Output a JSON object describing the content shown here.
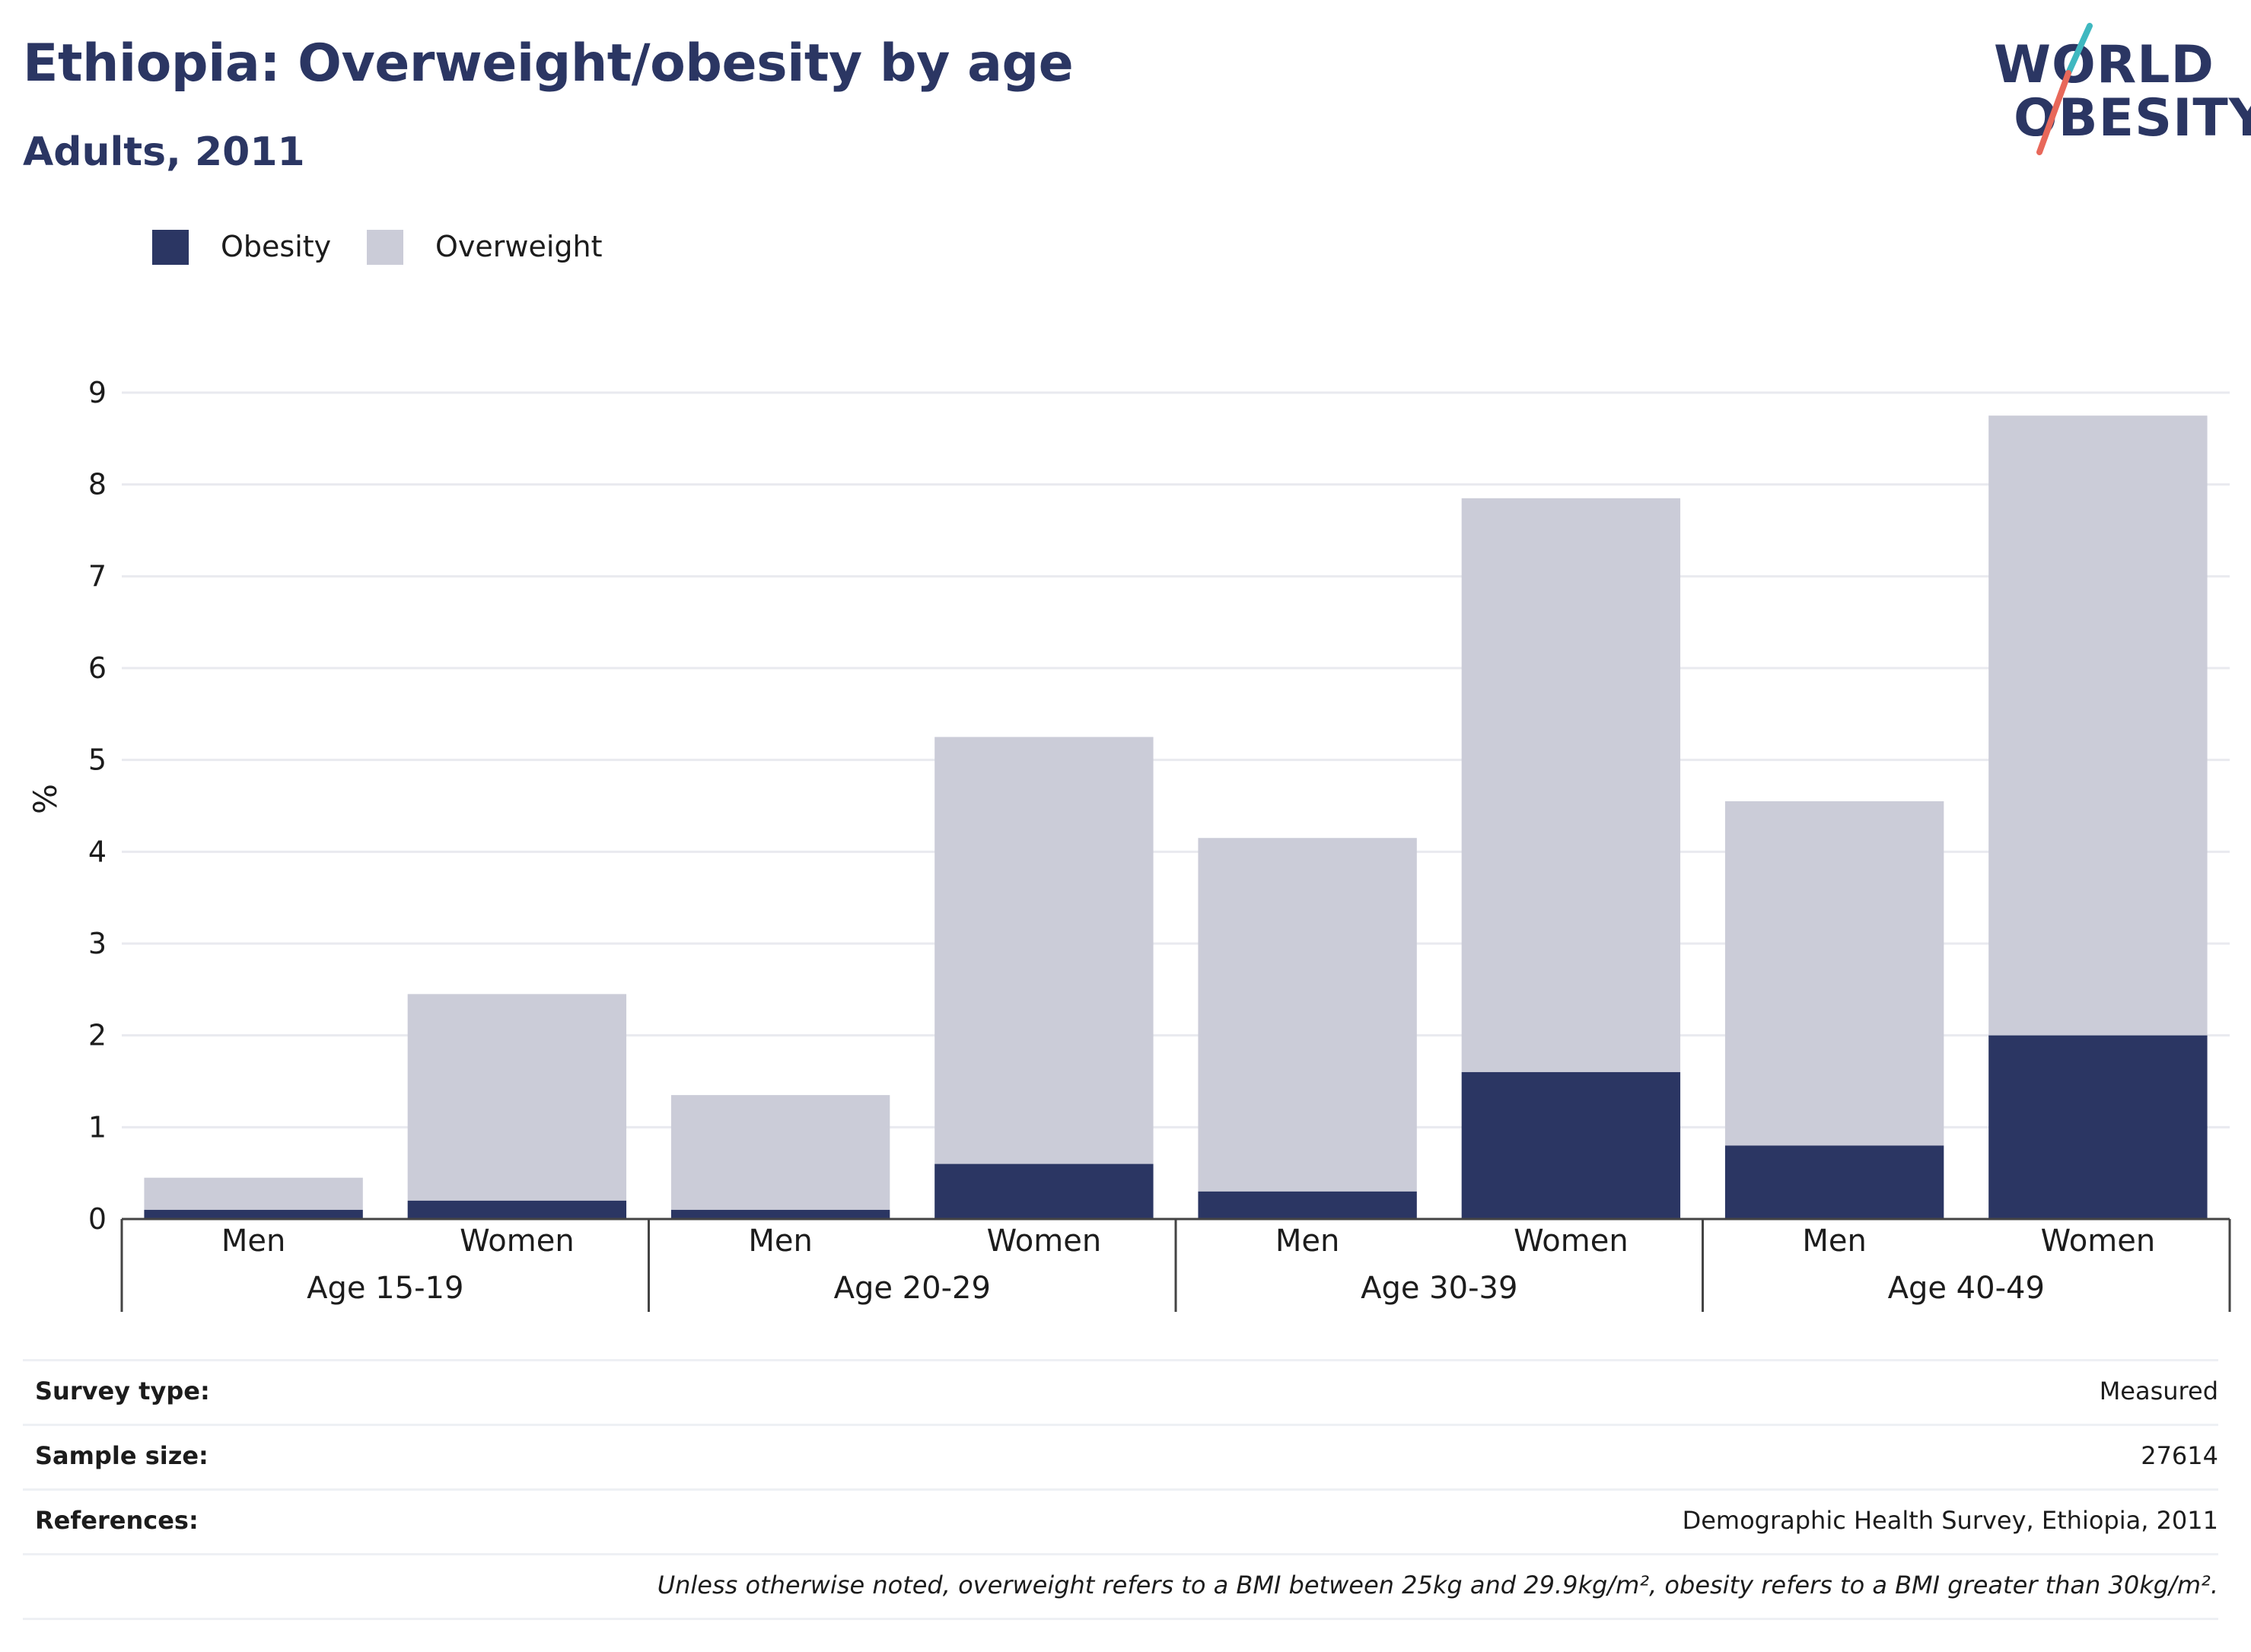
{
  "header": {
    "title": "Ethiopia: Overweight/obesity by age",
    "subtitle": "Adults, 2011"
  },
  "logo": {
    "line1": "WORLD",
    "line2": "OBESITY"
  },
  "legend": {
    "obesity_label": "Obesity",
    "overweight_label": "Overweight"
  },
  "colors": {
    "obesity": "#2b3663",
    "overweight": "#cbccd8",
    "logo_accent_teal": "#3fb8c0",
    "logo_accent_coral": "#e8685a"
  },
  "chart_data": {
    "type": "bar",
    "stacked": true,
    "ylabel": "%",
    "ylim": [
      0,
      9
    ],
    "yticks": [
      0,
      1,
      2,
      3,
      4,
      5,
      6,
      7,
      8,
      9
    ],
    "grid": true,
    "legend_position": "top-left",
    "groups": [
      "Age 15-19",
      "Age 20-29",
      "Age 30-39",
      "Age 40-49"
    ],
    "subcategories": [
      "Men",
      "Women"
    ],
    "categories": [
      "Men",
      "Women",
      "Men",
      "Women",
      "Men",
      "Women",
      "Men",
      "Women"
    ],
    "series": [
      {
        "name": "Obesity",
        "values": [
          0.1,
          0.2,
          0.1,
          0.6,
          0.3,
          1.6,
          0.8,
          2.0
        ]
      },
      {
        "name": "Overweight",
        "values": [
          0.35,
          2.25,
          1.25,
          4.65,
          3.85,
          6.25,
          3.75,
          6.75
        ]
      }
    ],
    "totals": [
      0.45,
      2.45,
      1.35,
      5.25,
      4.15,
      7.85,
      4.55,
      8.75
    ]
  },
  "info": {
    "survey_type_label": "Survey type:",
    "survey_type_value": "Measured",
    "sample_size_label": "Sample size:",
    "sample_size_value": "27614",
    "references_label": "References:",
    "references_value": "Demographic Health Survey, Ethiopia, 2011",
    "note": "Unless otherwise noted, overweight refers to a BMI between 25kg and 29.9kg/m², obesity refers to a BMI greater than 30kg/m²."
  }
}
